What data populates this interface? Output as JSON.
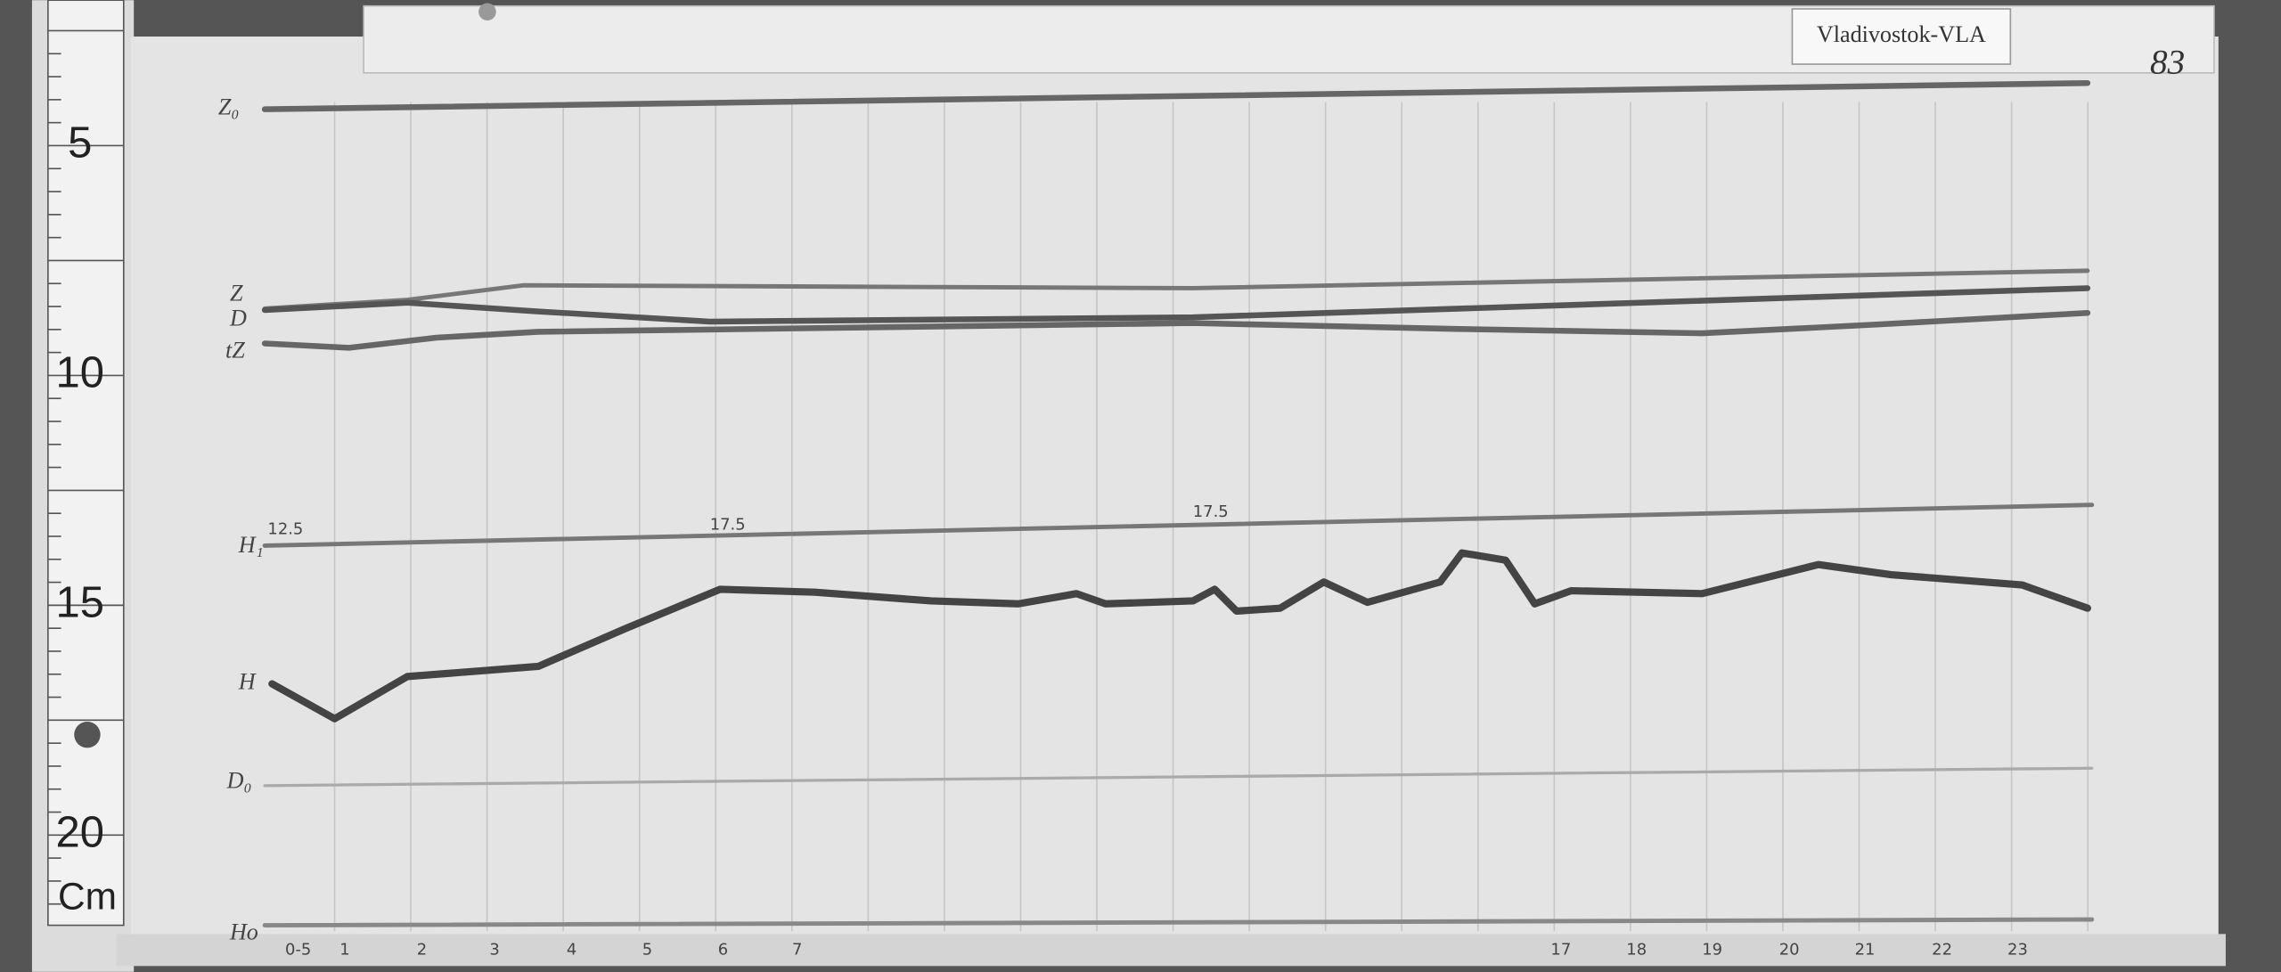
{
  "label": "Vladivostok-VLA",
  "sheet_number": "83",
  "ruler": {
    "marks": [
      "5",
      "10",
      "15",
      "20"
    ],
    "unit": "Cm"
  },
  "traces": {
    "z0": "Z₀",
    "z": "Z",
    "d": "D",
    "tz": "tZ",
    "h1": "H₁",
    "h": "H",
    "d0": "D₀",
    "h0": "Ho"
  },
  "baseline_values": [
    "12.5",
    "17.5",
    "17.5"
  ],
  "hours": [
    "0-5",
    "1",
    "2",
    "3",
    "4",
    "5",
    "6",
    "7",
    "17",
    "18",
    "19",
    "20",
    "21",
    "22",
    "23"
  ]
}
